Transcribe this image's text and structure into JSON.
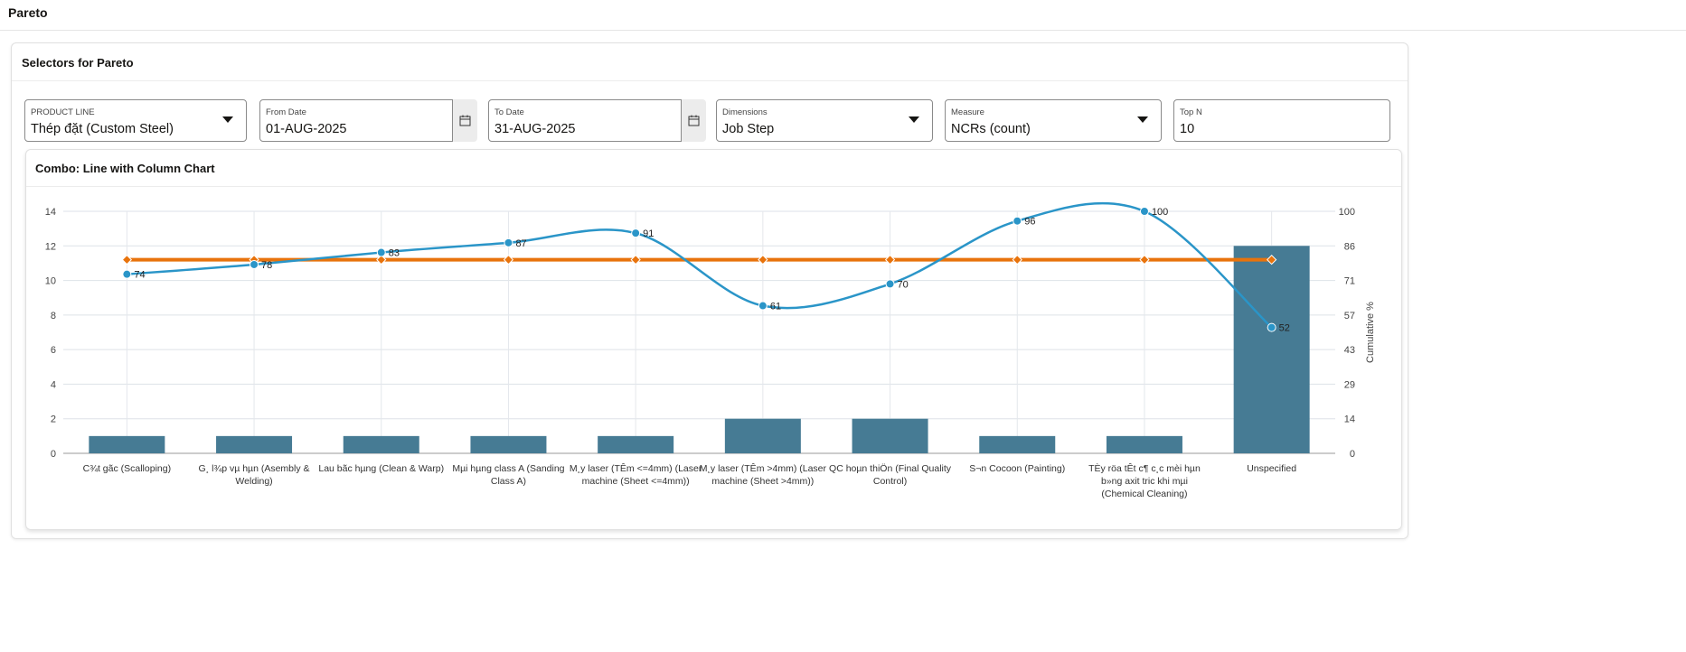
{
  "page": {
    "title": "Pareto"
  },
  "selectors": {
    "title": "Selectors for Pareto",
    "product_line": {
      "label": "PRODUCT LINE",
      "value": "Thép đặt (Custom Steel)"
    },
    "from_date": {
      "label": "From Date",
      "value": "01-AUG-2025"
    },
    "to_date": {
      "label": "To Date",
      "value": "31-AUG-2025"
    },
    "dimensions": {
      "label": "Dimensions",
      "value": "Job Step"
    },
    "measure": {
      "label": "Measure",
      "value": "NCRs (count)"
    },
    "top_n": {
      "label": "Top N",
      "value": "10"
    }
  },
  "chart_data": {
    "type": "bar+line",
    "title": "Combo: Line with Column Chart",
    "categories": [
      "C¾t gãc (Scalloping)",
      "G¸ l¾p vµ hµn (Asembly & Welding)",
      "Lau bãc hµng (Clean & Warp)",
      "Mµi hµng class A (Sanding Class A)",
      "M¸y laser (TÊm <=4mm) (Laser machine (Sheet <=4mm))",
      "M¸y laser (TÊm >4mm) (Laser machine (Sheet >4mm))",
      "QC hoµn thiÖn (Final Quality Control)",
      "S¬n Cocoon (Painting)",
      "TÈy röa tÊt c¶ c¸c mèi hµn b»ng axit tric khi mµi (Chemical Cleaning)",
      "Unspecified"
    ],
    "bars": [
      1,
      1,
      1,
      1,
      1,
      2,
      2,
      1,
      1,
      12
    ],
    "cumulative": [
      74,
      78,
      83,
      87,
      91,
      61,
      70,
      96,
      100,
      52
    ],
    "threshold": [
      80,
      80,
      80,
      80,
      80,
      80,
      80,
      80,
      80,
      80
    ],
    "y_left": {
      "range": [
        0,
        14
      ],
      "ticks": [
        "0",
        "2",
        "4",
        "6",
        "8",
        "10",
        "12",
        "14"
      ]
    },
    "y_right": {
      "label": "Cumulative %",
      "range": [
        0,
        100
      ],
      "ticks": [
        "0",
        "14",
        "29",
        "43",
        "57",
        "71",
        "86",
        "100"
      ]
    },
    "grid": true,
    "colors": {
      "bar": "#467b94",
      "cumulative": "#2a95c8",
      "threshold": "#e8730c"
    }
  }
}
